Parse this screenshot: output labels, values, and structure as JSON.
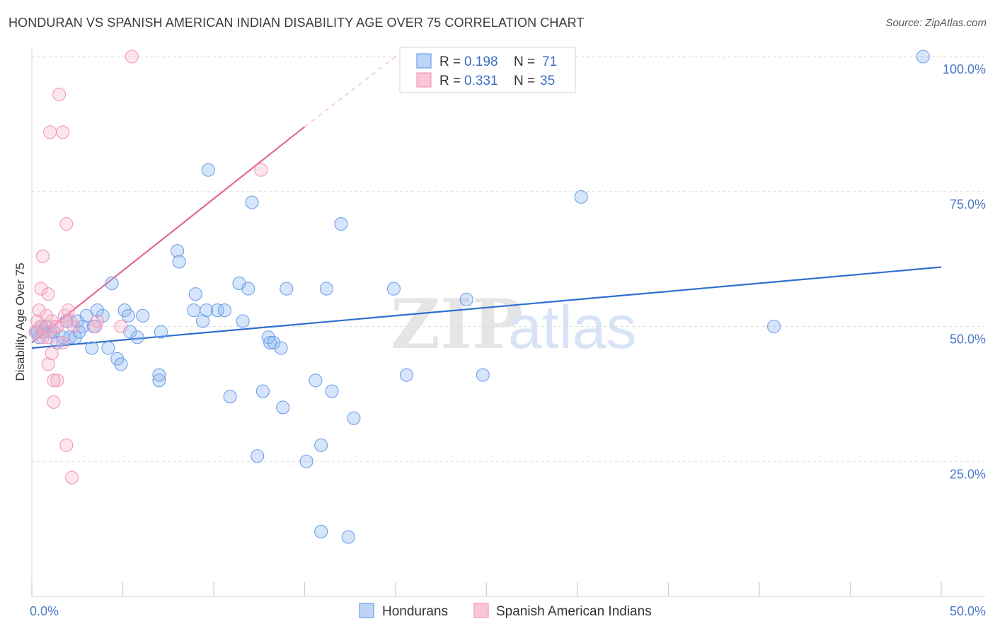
{
  "title": "HONDURAN VS SPANISH AMERICAN INDIAN DISABILITY AGE OVER 75 CORRELATION CHART",
  "source": "Source: ZipAtlas.com",
  "watermark": {
    "zip": "ZIP",
    "atlas": "atlas"
  },
  "legend": {
    "series1": {
      "r_label": "R =",
      "r_value": "0.198",
      "n_label": "N =",
      "n_value": "71"
    },
    "series2": {
      "r_label": "R =",
      "r_value": "0.331",
      "n_label": "N =",
      "n_value": "35"
    }
  },
  "bottom_legend": {
    "series1": "Hondurans",
    "series2": "Spanish American Indians"
  },
  "chart_data": {
    "type": "scatter",
    "title": "HONDURAN VS SPANISH AMERICAN INDIAN DISABILITY AGE OVER 75 CORRELATION CHART",
    "xlabel": "",
    "ylabel": "Disability Age Over 75",
    "xlim": [
      0,
      50
    ],
    "ylim": [
      0,
      100
    ],
    "x_tick_labels": [
      "0.0%",
      "50.0%"
    ],
    "y_tick_labels": [
      "25.0%",
      "50.0%",
      "75.0%",
      "100.0%"
    ],
    "y_ticks": [
      25,
      50,
      75,
      100
    ],
    "grid": "horizontal dashed",
    "colors": {
      "hondurans": "#6ea0e8",
      "spanish_american_indians": "#f29ab6",
      "blue_line": "#2f6fcf",
      "pink_line": "#e4698f"
    },
    "series": [
      {
        "name": "Hondurans",
        "r": 0.198,
        "n": 71,
        "trend": {
          "x": [
            0,
            50
          ],
          "y": [
            46,
            61
          ]
        },
        "points": [
          [
            0.2,
            49
          ],
          [
            0.4,
            48
          ],
          [
            0.5,
            50
          ],
          [
            0.6,
            49
          ],
          [
            0.8,
            50
          ],
          [
            1.0,
            49
          ],
          [
            1.2,
            49
          ],
          [
            1.4,
            47
          ],
          [
            1.7,
            48
          ],
          [
            1.9,
            51
          ],
          [
            2.1,
            48
          ],
          [
            2.4,
            48
          ],
          [
            2.5,
            51
          ],
          [
            2.6,
            49
          ],
          [
            2.8,
            50
          ],
          [
            3.0,
            52
          ],
          [
            3.3,
            46
          ],
          [
            3.4,
            50
          ],
          [
            3.6,
            53
          ],
          [
            3.9,
            52
          ],
          [
            4.2,
            46
          ],
          [
            4.4,
            58
          ],
          [
            4.7,
            44
          ],
          [
            4.9,
            43
          ],
          [
            5.1,
            53
          ],
          [
            5.3,
            52
          ],
          [
            5.4,
            49
          ],
          [
            5.8,
            48
          ],
          [
            6.1,
            52
          ],
          [
            7.0,
            40
          ],
          [
            7.0,
            41
          ],
          [
            7.1,
            49
          ],
          [
            8.0,
            64
          ],
          [
            8.1,
            62
          ],
          [
            8.9,
            53
          ],
          [
            9.0,
            56
          ],
          [
            9.4,
            51
          ],
          [
            9.6,
            53
          ],
          [
            9.7,
            79
          ],
          [
            10.2,
            53
          ],
          [
            10.6,
            53
          ],
          [
            10.9,
            37
          ],
          [
            11.4,
            58
          ],
          [
            11.6,
            51
          ],
          [
            11.9,
            57
          ],
          [
            12.1,
            73
          ],
          [
            12.4,
            26
          ],
          [
            12.7,
            38
          ],
          [
            13.0,
            48
          ],
          [
            13.1,
            47
          ],
          [
            13.3,
            47
          ],
          [
            13.7,
            46
          ],
          [
            13.8,
            35
          ],
          [
            14.0,
            57
          ],
          [
            15.1,
            25
          ],
          [
            15.6,
            40
          ],
          [
            15.9,
            12
          ],
          [
            15.9,
            28
          ],
          [
            16.2,
            57
          ],
          [
            16.5,
            38
          ],
          [
            17.0,
            69
          ],
          [
            17.4,
            11
          ],
          [
            17.7,
            33
          ],
          [
            19.9,
            57
          ],
          [
            20.6,
            41
          ],
          [
            23.9,
            55
          ],
          [
            24.8,
            41
          ],
          [
            30.2,
            74
          ],
          [
            40.8,
            50
          ],
          [
            49.0,
            100
          ],
          [
            0.3,
            49
          ]
        ]
      },
      {
        "name": "Spanish American Indians",
        "r": 0.331,
        "n": 35,
        "trend": {
          "x": [
            0,
            15
          ],
          "y": [
            47,
            87
          ]
        },
        "trend_dashed": {
          "x": [
            15,
            20
          ],
          "y": [
            87,
            100
          ]
        },
        "points": [
          [
            0.2,
            49
          ],
          [
            0.3,
            51
          ],
          [
            0.4,
            53
          ],
          [
            0.5,
            50
          ],
          [
            0.5,
            57
          ],
          [
            0.6,
            63
          ],
          [
            0.7,
            49
          ],
          [
            0.8,
            52
          ],
          [
            0.9,
            43
          ],
          [
            0.9,
            48
          ],
          [
            0.9,
            56
          ],
          [
            1.0,
            86
          ],
          [
            1.1,
            45
          ],
          [
            1.1,
            51
          ],
          [
            1.2,
            40
          ],
          [
            1.2,
            36
          ],
          [
            1.4,
            40
          ],
          [
            1.4,
            50
          ],
          [
            1.5,
            93
          ],
          [
            1.7,
            86
          ],
          [
            1.7,
            47
          ],
          [
            1.8,
            52
          ],
          [
            1.9,
            28
          ],
          [
            1.9,
            69
          ],
          [
            2.0,
            53
          ],
          [
            2.1,
            51
          ],
          [
            2.2,
            22
          ],
          [
            2.3,
            50
          ],
          [
            3.5,
            50
          ],
          [
            3.6,
            51
          ],
          [
            4.9,
            50
          ],
          [
            5.5,
            100
          ],
          [
            12.6,
            79
          ],
          [
            0.6,
            48
          ],
          [
            1.3,
            50
          ]
        ]
      }
    ]
  }
}
